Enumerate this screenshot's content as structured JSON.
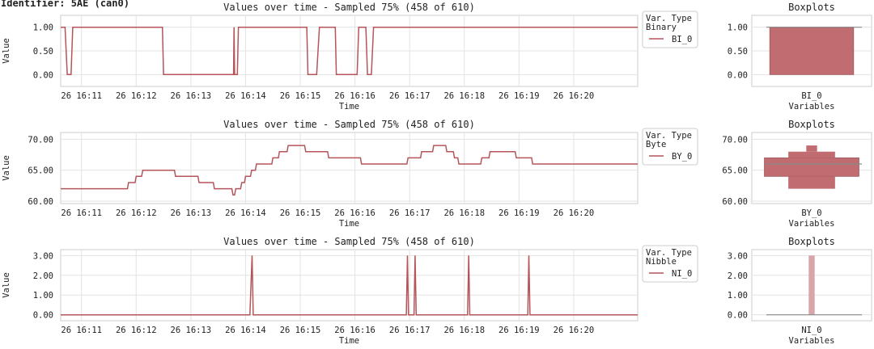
{
  "page_title": "Identifier: 5AE (can0)",
  "colors": {
    "line": "#b5555a",
    "box_fill": "#c06c70",
    "box_light": "#d8a6a8",
    "grid": "#e3e3e3",
    "frame": "#cccccc"
  },
  "x_ticks": [
    "26 16:11",
    "26 16:12",
    "26 16:13",
    "26 16:14",
    "26 16:15",
    "26 16:16",
    "26 16:17",
    "26 16:18",
    "26 16:19",
    "26 16:20"
  ],
  "chart_data": [
    {
      "type": "line",
      "title": "Values over time - Sampled 75% (458 of 610)",
      "xlabel": "Time",
      "ylabel": "Value",
      "ylim": [
        -0.25,
        1.25
      ],
      "yticks": [
        "0.00",
        "0.50",
        "1.00"
      ],
      "legend": {
        "title_line1": "Var. Type",
        "title_line2": "Binary",
        "entry": "BI_0",
        "placement": "right"
      },
      "series": [
        {
          "name": "BI_0",
          "points": [
            [
              10.62,
              1
            ],
            [
              10.7,
              1
            ],
            [
              10.74,
              0
            ],
            [
              10.81,
              0
            ],
            [
              10.84,
              1
            ],
            [
              12.48,
              1
            ],
            [
              12.5,
              0
            ],
            [
              13.78,
              0
            ],
            [
              13.79,
              1
            ],
            [
              13.8,
              0
            ],
            [
              13.85,
              0
            ],
            [
              13.87,
              1
            ],
            [
              15.12,
              1
            ],
            [
              15.14,
              0
            ],
            [
              15.3,
              0
            ],
            [
              15.35,
              1
            ],
            [
              15.64,
              1
            ],
            [
              15.66,
              0
            ],
            [
              16.04,
              0
            ],
            [
              16.07,
              1
            ],
            [
              16.2,
              1
            ],
            [
              16.23,
              0
            ],
            [
              16.3,
              0
            ],
            [
              16.34,
              1
            ],
            [
              21.17,
              1
            ]
          ]
        }
      ],
      "grid": true
    },
    {
      "type": "boxplot",
      "title": "Boxplots",
      "xlabel": "Variables",
      "category": "BI_0",
      "ylim": [
        -0.25,
        1.25
      ],
      "yticks": [
        "0.00",
        "0.50",
        "1.00"
      ],
      "boxes": [
        {
          "low": 0.0,
          "high": 1.0,
          "width": 0.7,
          "tone": "dark"
        }
      ],
      "median": 1.0
    },
    {
      "type": "line",
      "title": "Values over time - Sampled 75% (458 of 610)",
      "xlabel": "Time",
      "ylabel": "Value",
      "ylim": [
        59.6,
        71.1
      ],
      "yticks": [
        "60.00",
        "65.00",
        "70.00"
      ],
      "legend": {
        "title_line1": "Var. Type",
        "title_line2": "Byte",
        "entry": "BY_0",
        "placement": "right"
      },
      "series": [
        {
          "name": "BY_0",
          "points": [
            [
              10.62,
              62
            ],
            [
              11.84,
              62
            ],
            [
              11.86,
              63
            ],
            [
              11.98,
              63
            ],
            [
              12.0,
              64
            ],
            [
              12.1,
              64
            ],
            [
              12.12,
              65
            ],
            [
              12.7,
              65
            ],
            [
              12.72,
              64
            ],
            [
              13.13,
              64
            ],
            [
              13.15,
              63
            ],
            [
              13.41,
              63
            ],
            [
              13.43,
              62
            ],
            [
              13.75,
              62
            ],
            [
              13.77,
              61
            ],
            [
              13.8,
              61
            ],
            [
              13.82,
              62
            ],
            [
              13.91,
              62
            ],
            [
              13.93,
              63
            ],
            [
              13.98,
              63
            ],
            [
              14.0,
              64
            ],
            [
              14.09,
              64
            ],
            [
              14.11,
              65
            ],
            [
              14.18,
              65
            ],
            [
              14.2,
              66
            ],
            [
              14.48,
              66
            ],
            [
              14.5,
              67
            ],
            [
              14.6,
              67
            ],
            [
              14.62,
              68
            ],
            [
              14.76,
              68
            ],
            [
              14.78,
              69
            ],
            [
              15.08,
              69
            ],
            [
              15.1,
              68
            ],
            [
              15.5,
              68
            ],
            [
              15.52,
              67
            ],
            [
              16.1,
              67
            ],
            [
              16.12,
              66
            ],
            [
              16.95,
              66
            ],
            [
              16.97,
              67
            ],
            [
              17.2,
              67
            ],
            [
              17.22,
              68
            ],
            [
              17.42,
              68
            ],
            [
              17.44,
              69
            ],
            [
              17.66,
              69
            ],
            [
              17.68,
              68
            ],
            [
              17.8,
              68
            ],
            [
              17.82,
              67
            ],
            [
              17.88,
              67
            ],
            [
              17.9,
              66
            ],
            [
              18.3,
              66
            ],
            [
              18.32,
              67
            ],
            [
              18.45,
              67
            ],
            [
              18.47,
              68
            ],
            [
              18.93,
              68
            ],
            [
              18.95,
              67
            ],
            [
              19.23,
              67
            ],
            [
              19.25,
              66
            ],
            [
              21.17,
              66
            ]
          ]
        }
      ],
      "grid": true
    },
    {
      "type": "boxplot",
      "title": "Boxplots",
      "xlabel": "Variables",
      "category": "BY_0",
      "ylim": [
        59.6,
        71.1
      ],
      "yticks": [
        "60.00",
        "65.00",
        "70.00"
      ],
      "boxes": [
        {
          "low": 64.0,
          "high": 67.0,
          "width": 0.79,
          "tone": "dark"
        },
        {
          "low": 67.0,
          "high": 68.0,
          "width": 0.39,
          "tone": "mid"
        },
        {
          "low": 62.0,
          "high": 64.0,
          "width": 0.39,
          "tone": "mid"
        },
        {
          "low": 68.0,
          "high": 69.0,
          "width": 0.09,
          "tone": "mid"
        }
      ],
      "median": 66.0
    },
    {
      "type": "line",
      "title": "Values over time - Sampled 75% (458 of 610)",
      "xlabel": "Time",
      "ylabel": "Value",
      "ylim": [
        -0.3,
        3.3
      ],
      "yticks": [
        "0.00",
        "1.00",
        "2.00",
        "3.00"
      ],
      "legend": {
        "title_line1": "Var. Type",
        "title_line2": "Nibble",
        "entry": "NI_0",
        "placement": "right"
      },
      "series": [
        {
          "name": "NI_0",
          "points": [
            [
              10.62,
              0
            ],
            [
              14.08,
              0
            ],
            [
              14.12,
              3
            ],
            [
              14.14,
              0
            ],
            [
              16.94,
              0
            ],
            [
              16.96,
              3
            ],
            [
              16.98,
              0
            ],
            [
              17.08,
              0
            ],
            [
              17.1,
              3
            ],
            [
              17.12,
              0
            ],
            [
              18.06,
              0
            ],
            [
              18.08,
              3
            ],
            [
              18.1,
              0
            ],
            [
              19.16,
              0
            ],
            [
              19.18,
              3
            ],
            [
              19.2,
              0
            ],
            [
              21.17,
              0
            ]
          ]
        }
      ],
      "grid": true
    },
    {
      "type": "boxplot",
      "title": "Boxplots",
      "xlabel": "Variables",
      "category": "NI_0",
      "ylim": [
        -0.3,
        3.3
      ],
      "yticks": [
        "0.00",
        "1.00",
        "2.00",
        "3.00"
      ],
      "boxes": [
        {
          "low": 0.0,
          "high": 3.0,
          "width": 0.05,
          "tone": "light"
        }
      ],
      "median": 0.0
    }
  ]
}
